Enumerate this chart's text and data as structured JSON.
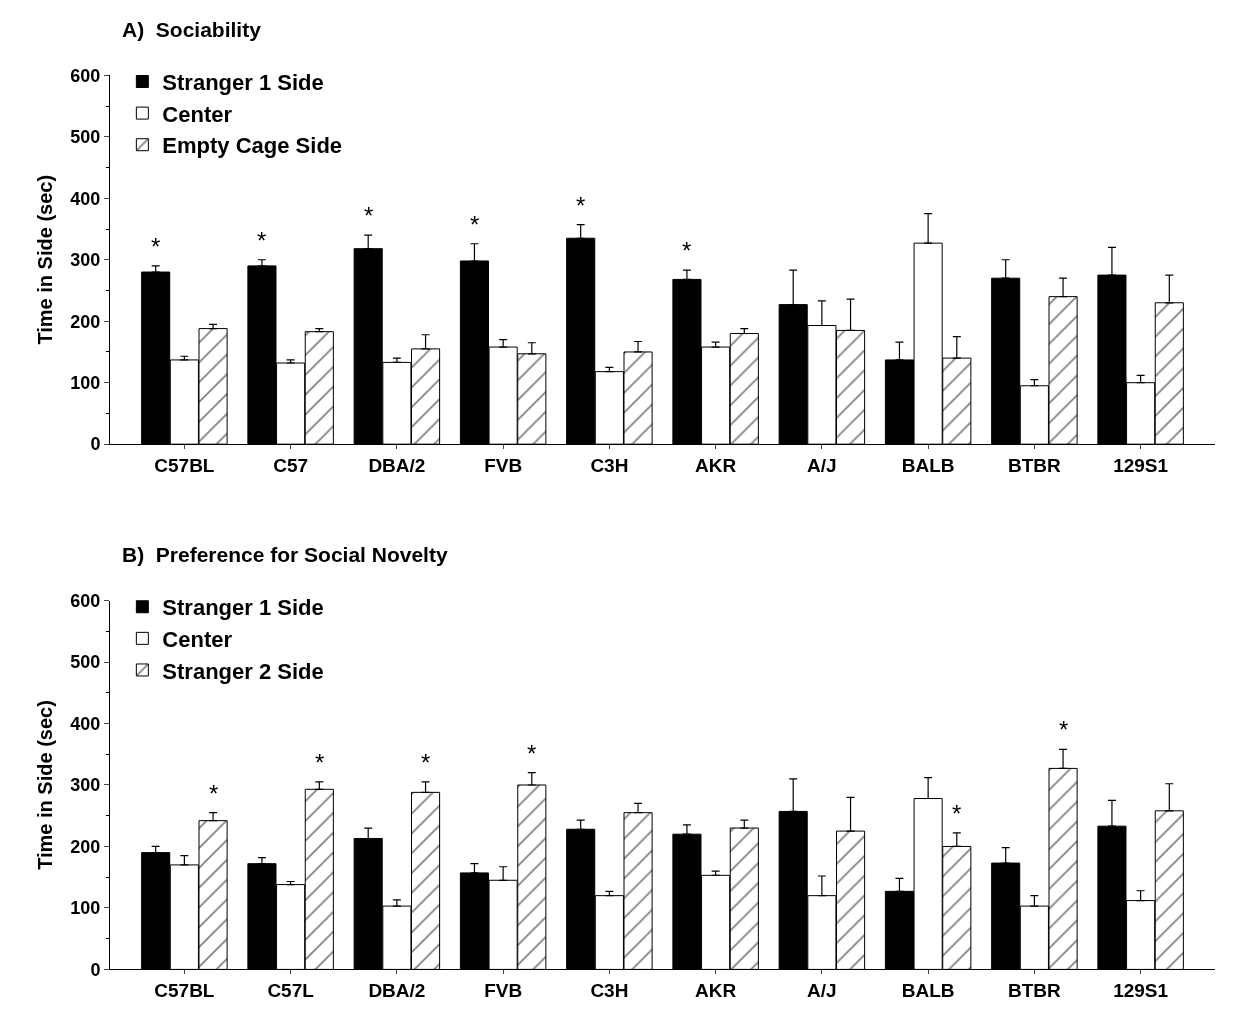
{
  "chart_data": [
    {
      "type": "bar",
      "title": "A)  Sociability",
      "ylabel": "Time in Side (sec)",
      "categories": [
        "C57BL",
        "C57",
        "DBA/2",
        "FVB",
        "C3H",
        "AKR",
        "A/J",
        "BALB",
        "BTBR",
        "129S1"
      ],
      "series": [
        {
          "name": "Stranger 1 Side",
          "color": "#000000",
          "values": [
            280,
            290,
            318,
            298,
            335,
            268,
            227,
            137,
            270,
            275
          ],
          "errors": [
            [
              280,
              290
            ],
            [
              290,
              300
            ],
            [
              318,
              340
            ],
            [
              298,
              326
            ],
            [
              335,
              357
            ],
            [
              268,
              283
            ],
            [
              227,
              283
            ],
            [
              137,
              166
            ],
            [
              270,
              300
            ],
            [
              275,
              320
            ]
          ]
        },
        {
          "name": "Center",
          "color": "#ffffff",
          "values": [
            137,
            132,
            133,
            158,
            118,
            158,
            193,
            327,
            95,
            100
          ],
          "errors": [
            [
              137,
              143
            ],
            [
              132,
              137
            ],
            [
              133,
              140
            ],
            [
              158,
              170
            ],
            [
              118,
              125
            ],
            [
              158,
              166
            ],
            [
              193,
              233
            ],
            [
              327,
              375
            ],
            [
              95,
              105
            ],
            [
              100,
              112
            ]
          ]
        },
        {
          "name": "Empty Cage Side",
          "color": "#000000",
          "values": [
            188,
            183,
            155,
            147,
            150,
            180,
            185,
            140,
            240,
            230
          ],
          "errors": [
            [
              188,
              195
            ],
            [
              183,
              188
            ],
            [
              155,
              178
            ],
            [
              147,
              165
            ],
            [
              150,
              167
            ],
            [
              180,
              188
            ],
            [
              185,
              236
            ],
            [
              140,
              175
            ],
            [
              240,
              270
            ],
            [
              230,
              275
            ]
          ]
        }
      ],
      "annotations": [
        "*",
        "*",
        "*",
        "*",
        "*",
        "*"
      ],
      "ylim": [
        0,
        600
      ],
      "yticks": [
        0,
        100,
        200,
        300,
        400,
        500,
        600
      ],
      "legend": "top left"
    },
    {
      "type": "bar",
      "title": "B)  Preference for Social Novelty",
      "ylabel": "Time in Side (sec)",
      "categories": [
        "C57BL",
        "C57L",
        "DBA/2",
        "FVB",
        "C3H",
        "AKR",
        "A/J",
        "BALB",
        "BTBR",
        "129S1"
      ],
      "series": [
        {
          "name": "Stranger 1 Side",
          "color": "#000000",
          "values": [
            190,
            172,
            213,
            157,
            228,
            220,
            257,
            127,
            173,
            233
          ],
          "errors": [
            [
              190,
              200
            ],
            [
              172,
              182
            ],
            [
              213,
              230
            ],
            [
              157,
              172
            ],
            [
              228,
              243
            ],
            [
              220,
              235
            ],
            [
              257,
              310
            ],
            [
              127,
              148
            ],
            [
              173,
              198
            ],
            [
              233,
              275
            ]
          ]
        },
        {
          "name": "Center",
          "color": "#ffffff",
          "values": [
            170,
            138,
            103,
            145,
            120,
            153,
            120,
            278,
            103,
            112
          ],
          "errors": [
            [
              170,
              185
            ],
            [
              138,
              143
            ],
            [
              103,
              113
            ],
            [
              145,
              167
            ],
            [
              120,
              127
            ],
            [
              153,
              160
            ],
            [
              120,
              152
            ],
            [
              278,
              312
            ],
            [
              103,
              120
            ],
            [
              112,
              128
            ]
          ]
        },
        {
          "name": "Stranger 2 Side",
          "color": "#000000",
          "values": [
            242,
            293,
            288,
            300,
            255,
            230,
            225,
            200,
            327,
            258
          ],
          "errors": [
            [
              242,
              255
            ],
            [
              293,
              305
            ],
            [
              288,
              305
            ],
            [
              300,
              320
            ],
            [
              255,
              270
            ],
            [
              230,
              243
            ],
            [
              225,
              280
            ],
            [
              200,
              222
            ],
            [
              327,
              358
            ],
            [
              258,
              302
            ]
          ]
        }
      ],
      "annotations": [
        "*",
        "*",
        "*",
        "*",
        "*",
        "*"
      ],
      "ylim": [
        0,
        600
      ],
      "yticks": [
        0,
        100,
        200,
        300,
        400,
        500,
        600
      ],
      "legend": "top left"
    }
  ]
}
